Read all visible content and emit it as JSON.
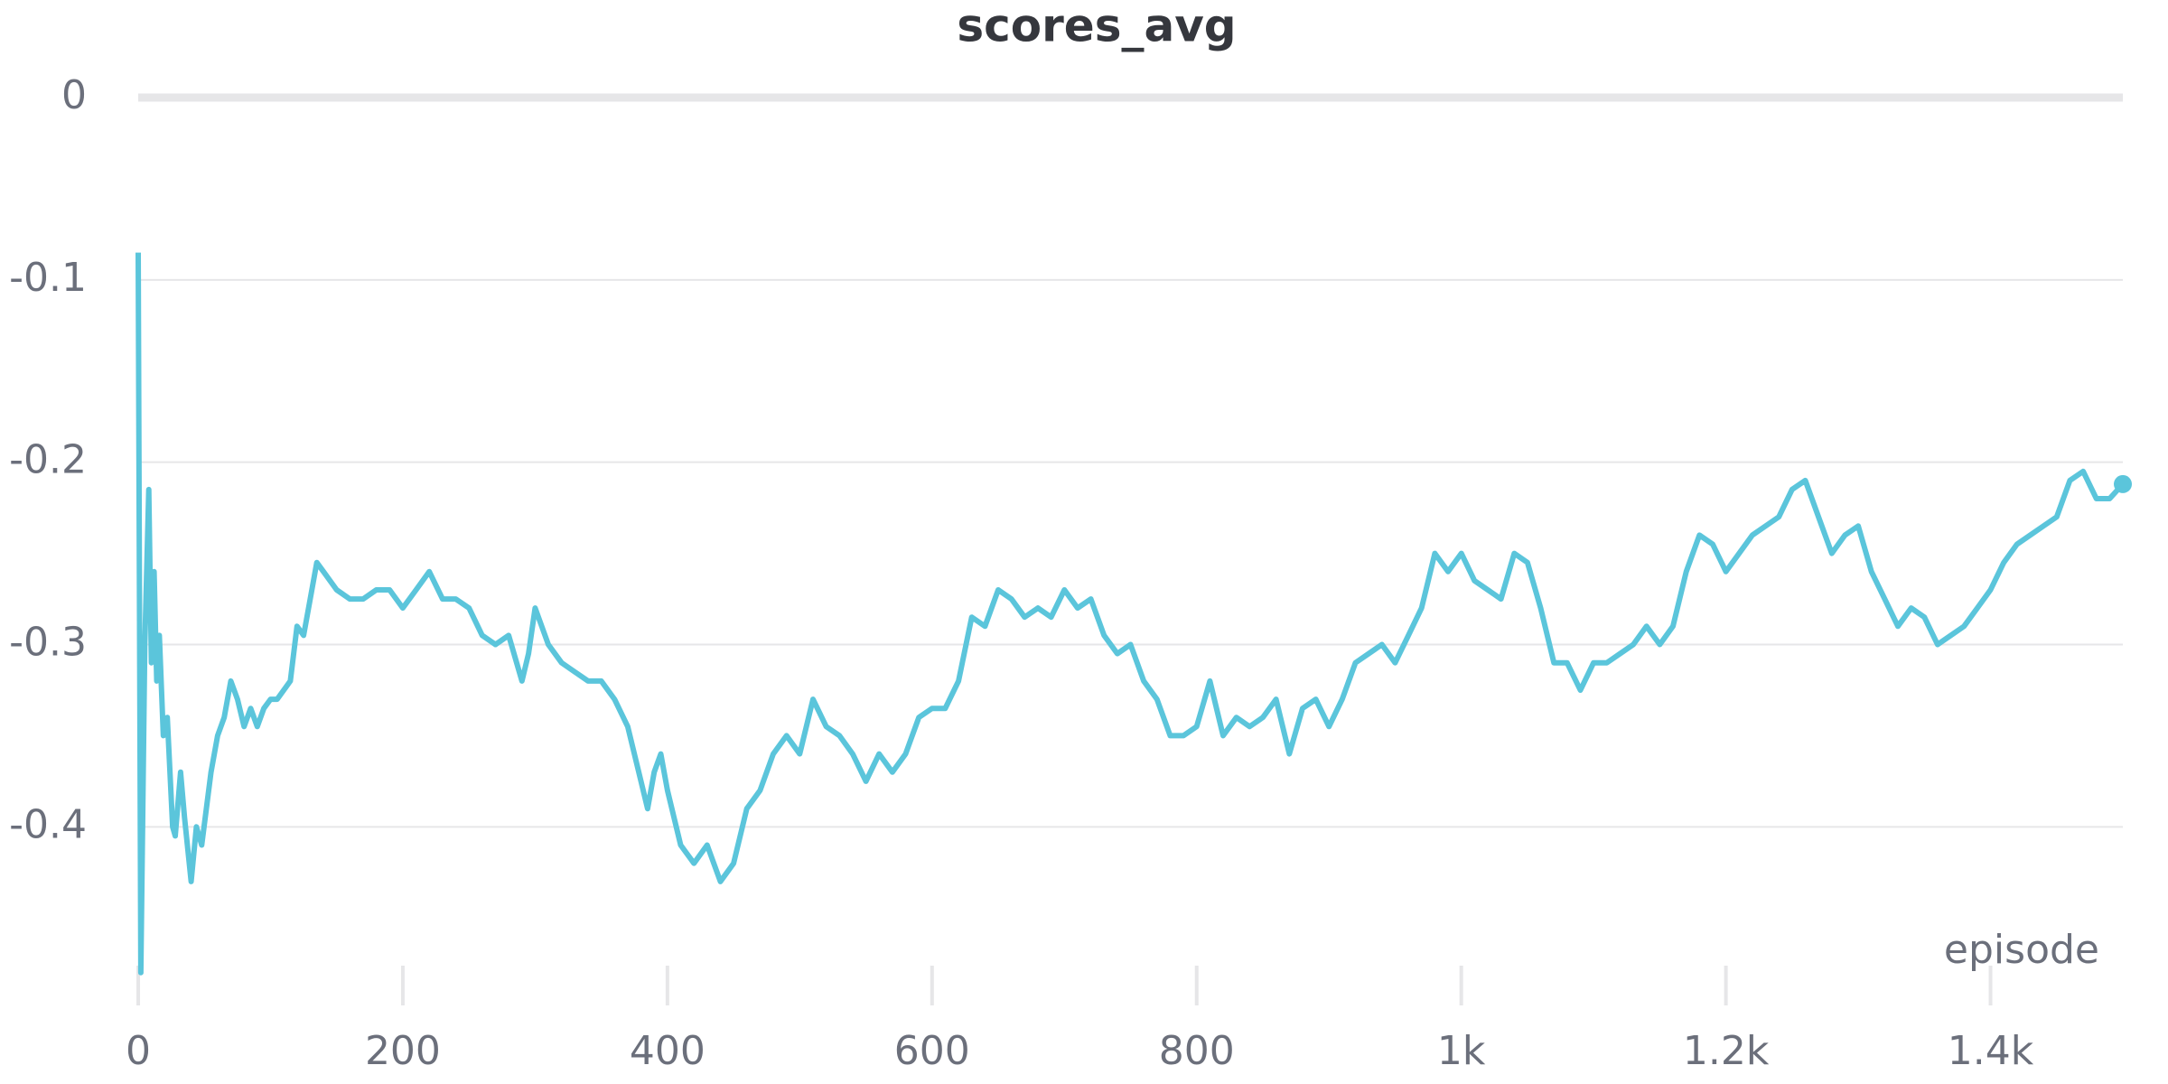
{
  "chart_data": {
    "type": "line",
    "title": "scores_avg",
    "x_label": "episode",
    "color": "#5bc5db",
    "grid": true,
    "xlim": [
      0,
      1500
    ],
    "ylim": [
      -0.49,
      0
    ],
    "xticks": [
      0,
      200,
      400,
      600,
      800,
      {
        "value": 1000,
        "label": "1k"
      },
      {
        "value": 1200,
        "label": "1.2k"
      },
      {
        "value": 1400,
        "label": "1.4k"
      }
    ],
    "yticks": [
      0,
      -0.1,
      -0.2,
      -0.3,
      -0.4
    ],
    "x": [
      0,
      2,
      5,
      8,
      10,
      12,
      14,
      16,
      19,
      22,
      26,
      28,
      32,
      35,
      40,
      44,
      48,
      55,
      60,
      65,
      70,
      75,
      80,
      85,
      90,
      95,
      100,
      105,
      110,
      115,
      120,
      125,
      130,
      135,
      140,
      150,
      160,
      170,
      180,
      190,
      200,
      210,
      220,
      230,
      240,
      250,
      260,
      270,
      280,
      290,
      295,
      300,
      310,
      320,
      330,
      340,
      350,
      360,
      370,
      380,
      385,
      390,
      395,
      400,
      410,
      420,
      430,
      440,
      450,
      460,
      470,
      480,
      490,
      500,
      510,
      520,
      530,
      540,
      550,
      560,
      570,
      580,
      590,
      600,
      610,
      620,
      630,
      640,
      650,
      660,
      670,
      680,
      690,
      700,
      710,
      720,
      730,
      740,
      750,
      760,
      770,
      780,
      790,
      800,
      810,
      820,
      830,
      840,
      850,
      860,
      870,
      880,
      890,
      900,
      910,
      920,
      930,
      940,
      950,
      960,
      970,
      980,
      990,
      1000,
      1010,
      1020,
      1030,
      1040,
      1050,
      1060,
      1070,
      1080,
      1090,
      1100,
      1110,
      1120,
      1130,
      1140,
      1150,
      1160,
      1170,
      1180,
      1190,
      1200,
      1210,
      1220,
      1230,
      1240,
      1250,
      1260,
      1270,
      1280,
      1290,
      1300,
      1310,
      1320,
      1330,
      1340,
      1350,
      1360,
      1370,
      1380,
      1390,
      1400,
      1410,
      1420,
      1430,
      1440,
      1450,
      1460,
      1470,
      1480,
      1490,
      1500
    ],
    "values": [
      -0.085,
      -0.48,
      -0.3,
      -0.215,
      -0.31,
      -0.26,
      -0.32,
      -0.295,
      -0.35,
      -0.34,
      -0.4,
      -0.405,
      -0.37,
      -0.395,
      -0.43,
      -0.4,
      -0.41,
      -0.37,
      -0.35,
      -0.34,
      -0.32,
      -0.33,
      -0.345,
      -0.335,
      -0.345,
      -0.335,
      -0.33,
      -0.33,
      -0.325,
      -0.32,
      -0.29,
      -0.295,
      -0.275,
      -0.255,
      -0.26,
      -0.27,
      -0.275,
      -0.275,
      -0.27,
      -0.27,
      -0.28,
      -0.27,
      -0.26,
      -0.275,
      -0.275,
      -0.28,
      -0.295,
      -0.3,
      -0.295,
      -0.32,
      -0.305,
      -0.28,
      -0.3,
      -0.31,
      -0.315,
      -0.32,
      -0.32,
      -0.33,
      -0.345,
      -0.375,
      -0.39,
      -0.37,
      -0.36,
      -0.38,
      -0.41,
      -0.42,
      -0.41,
      -0.43,
      -0.42,
      -0.39,
      -0.38,
      -0.36,
      -0.35,
      -0.36,
      -0.33,
      -0.345,
      -0.35,
      -0.36,
      -0.375,
      -0.36,
      -0.37,
      -0.36,
      -0.34,
      -0.335,
      -0.335,
      -0.32,
      -0.285,
      -0.29,
      -0.27,
      -0.275,
      -0.285,
      -0.28,
      -0.285,
      -0.27,
      -0.28,
      -0.275,
      -0.295,
      -0.305,
      -0.3,
      -0.32,
      -0.33,
      -0.35,
      -0.35,
      -0.345,
      -0.32,
      -0.35,
      -0.34,
      -0.345,
      -0.34,
      -0.33,
      -0.36,
      -0.335,
      -0.33,
      -0.345,
      -0.33,
      -0.31,
      -0.305,
      -0.3,
      -0.31,
      -0.295,
      -0.28,
      -0.25,
      -0.26,
      -0.25,
      -0.265,
      -0.27,
      -0.275,
      -0.25,
      -0.255,
      -0.28,
      -0.31,
      -0.31,
      -0.325,
      -0.31,
      -0.31,
      -0.305,
      -0.3,
      -0.29,
      -0.3,
      -0.29,
      -0.26,
      -0.24,
      -0.245,
      -0.26,
      -0.25,
      -0.24,
      -0.235,
      -0.23,
      -0.215,
      -0.21,
      -0.23,
      -0.25,
      -0.24,
      -0.235,
      -0.26,
      -0.275,
      -0.29,
      -0.28,
      -0.285,
      -0.3,
      -0.295,
      -0.29,
      -0.28,
      -0.27,
      -0.255,
      -0.245,
      -0.24,
      -0.235,
      -0.23,
      -0.21,
      -0.205,
      -0.22,
      -0.22,
      -0.212
    ]
  }
}
